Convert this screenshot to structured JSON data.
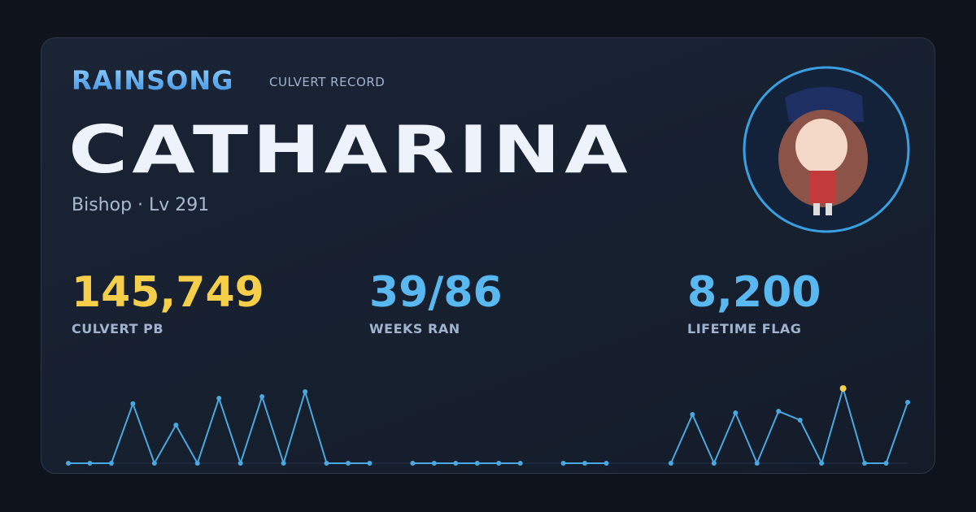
{
  "header": {
    "brand": "RAINSONG",
    "subtitle": "CULVERT RECORD",
    "name": "CATHARINA",
    "info": "Bishop · Lv 291"
  },
  "stats": [
    {
      "value": "145,749",
      "label": "CULVERT PB"
    },
    {
      "value": "39/86",
      "label": "WEEKS RAN"
    },
    {
      "value": "8,200",
      "label": "LIFETIME FLAG"
    }
  ],
  "chart_data": {
    "type": "line",
    "color": "#4aa8e0",
    "highlight_color": "#f5cf4a",
    "values": [
      0,
      0,
      0,
      116000,
      0,
      74500,
      0,
      126700,
      0,
      129900,
      0,
      139400,
      0,
      0,
      0,
      null,
      0,
      0,
      0,
      0,
      0,
      0,
      null,
      0,
      0,
      0,
      null,
      null,
      0,
      95000,
      0,
      98200,
      0,
      101400,
      84000,
      0,
      145749,
      0,
      0,
      118800
    ]
  }
}
